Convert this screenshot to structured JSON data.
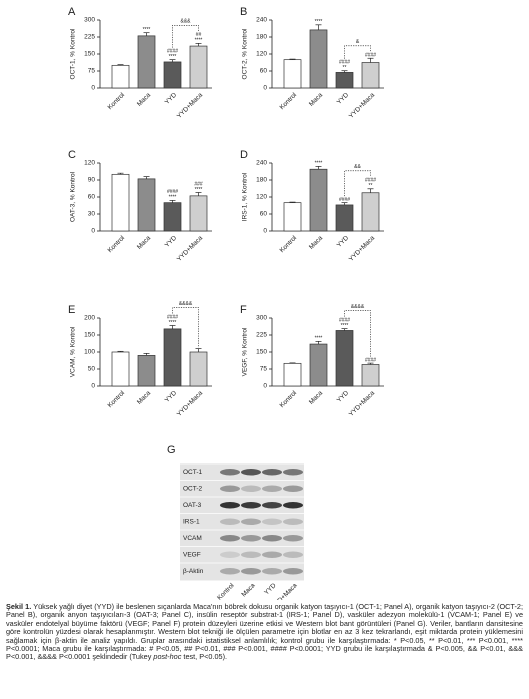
{
  "chart_data": [
    {
      "type": "bar",
      "panel": "A",
      "ylabel": "OCT-1, % Kontrol",
      "categories": [
        "Kontrol",
        "Maca",
        "YYD",
        "YYD+Maca"
      ],
      "values": [
        100,
        230,
        115,
        185
      ],
      "errors": [
        3,
        14,
        10,
        12
      ],
      "colors": [
        "#ffffff",
        "#8c8c8c",
        "#5a5a5a",
        "#cfcfcf"
      ],
      "ylim": [
        0,
        300
      ],
      "yticks": [
        0,
        75,
        150,
        225,
        300
      ],
      "sig": [
        [],
        [
          "****"
        ],
        [
          "####",
          "****"
        ],
        [
          "##",
          "****"
        ]
      ],
      "bracket": "&&&"
    },
    {
      "type": "bar",
      "panel": "B",
      "ylabel": "OCT-2, % Kontrol",
      "categories": [
        "Kontrol",
        "Maca",
        "YYD",
        "YYD+Maca"
      ],
      "values": [
        100,
        205,
        55,
        90
      ],
      "errors": [
        2,
        18,
        6,
        15
      ],
      "colors": [
        "#ffffff",
        "#8c8c8c",
        "#5a5a5a",
        "#cfcfcf"
      ],
      "ylim": [
        0,
        240
      ],
      "yticks": [
        0,
        60,
        120,
        180,
        240
      ],
      "sig": [
        [],
        [
          "****"
        ],
        [
          "####",
          "**"
        ],
        [
          "####"
        ]
      ],
      "bracket": "&"
    },
    {
      "type": "bar",
      "panel": "C",
      "ylabel": "OAT-3, % Kontrol",
      "categories": [
        "Kontrol",
        "Maca",
        "YYD",
        "YYD+Maca"
      ],
      "values": [
        100,
        92,
        50,
        62
      ],
      "errors": [
        2,
        4,
        4,
        6
      ],
      "colors": [
        "#ffffff",
        "#8c8c8c",
        "#5a5a5a",
        "#cfcfcf"
      ],
      "ylim": [
        0,
        120
      ],
      "yticks": [
        0,
        30,
        60,
        90,
        120
      ],
      "sig": [
        [],
        [],
        [
          "####",
          "****"
        ],
        [
          "###",
          "****"
        ]
      ]
    },
    {
      "type": "bar",
      "panel": "D",
      "ylabel": "IRS-1, % Kontrol",
      "categories": [
        "Kontrol",
        "Maca",
        "YYD",
        "YYD+Maca"
      ],
      "values": [
        100,
        218,
        92,
        135
      ],
      "errors": [
        2,
        10,
        8,
        14
      ],
      "colors": [
        "#ffffff",
        "#8c8c8c",
        "#5a5a5a",
        "#cfcfcf"
      ],
      "ylim": [
        0,
        240
      ],
      "yticks": [
        0,
        60,
        120,
        180,
        240
      ],
      "sig": [
        [],
        [
          "****"
        ],
        [
          "####"
        ],
        [
          "####",
          "**"
        ]
      ],
      "bracket": "&&"
    },
    {
      "type": "bar",
      "panel": "E",
      "ylabel": "VCAM, % Kontrol",
      "categories": [
        "Kontrol",
        "Maca",
        "YYD",
        "YYD+Maca"
      ],
      "values": [
        100,
        90,
        168,
        100
      ],
      "errors": [
        2,
        6,
        10,
        10
      ],
      "colors": [
        "#ffffff",
        "#8c8c8c",
        "#5a5a5a",
        "#cfcfcf"
      ],
      "ylim": [
        0,
        200
      ],
      "yticks": [
        0,
        50,
        100,
        150,
        200
      ],
      "sig": [
        [],
        [],
        [
          "####",
          "****"
        ],
        []
      ],
      "bracket": "&&&&"
    },
    {
      "type": "bar",
      "panel": "F",
      "ylabel": "VEGF, % Kontrol",
      "categories": [
        "Kontrol",
        "Maca",
        "YYD",
        "YYD+Maca"
      ],
      "values": [
        100,
        185,
        245,
        95
      ],
      "errors": [
        2,
        12,
        8,
        6
      ],
      "colors": [
        "#ffffff",
        "#8c8c8c",
        "#5a5a5a",
        "#cfcfcf"
      ],
      "ylim": [
        0,
        300
      ],
      "yticks": [
        0,
        75,
        150,
        225,
        300
      ],
      "sig": [
        [],
        [
          "****"
        ],
        [
          "####",
          "****"
        ],
        [
          "####"
        ]
      ],
      "bracket": "&&&&"
    }
  ],
  "blot": {
    "panel": "G",
    "proteins": [
      "OCT-1",
      "OCT-2",
      "OAT-3",
      "IRS-1",
      "VCAM",
      "VEGF",
      "β-Aktin"
    ],
    "lanes": [
      "Kontrol",
      "Maca",
      "YYD",
      "YYD+Maca"
    ]
  },
  "caption": {
    "label": "Şekil 1.",
    "text": " Yüksek yağlı diyet (YYD) ile beslenen sıçanlarda Maca'nın böbrek dokusu organik katyon taşıyıcı-1 (OCT-1; Panel A), organik katyon taşıyıcı-2 (OCT-2; Panel B), organik anyon taşıyıcıları-3 (OAT-3; Panel C), insülin reseptör substrat-1 (IRS-1; Panel D), vasküler adezyon molekülü-1 (VCAM-1; Panel E) ve vasküler endotelyal büyüme faktörü (VEGF; Panel F) protein düzeyleri üzerine etkisi ve Western blot bant görüntüleri (Panel G). Veriler, bantların dansitesine göre kontrolün yüzdesi olarak hesaplanmıştır. Western blot tekniği ile ölçülen parametre için blotlar en az 3 kez tekrarlandı, eşit miktarda protein yüklemesini sağlamak için β-aktin ile analiz yapıldı. Gruplar arasındaki istatistiksel anlamlılık; kontrol grubu ile karşılaştırmada: * P<0.05, ** P<0.01, *** P<0.001, **** P<0.0001; Maca grubu ile karşılaştırmada: # P<0.05, ## P<0.01, ### P<0.001, #### P<0.0001; YYD grubu ile karşılaştırmada & P<0.005, && P<0.01, &&& P<0.001, &&&& P<0.0001 şeklindedir (Tukey ",
    "italic": "post-hoc",
    "end": " test, P<0.05)."
  }
}
